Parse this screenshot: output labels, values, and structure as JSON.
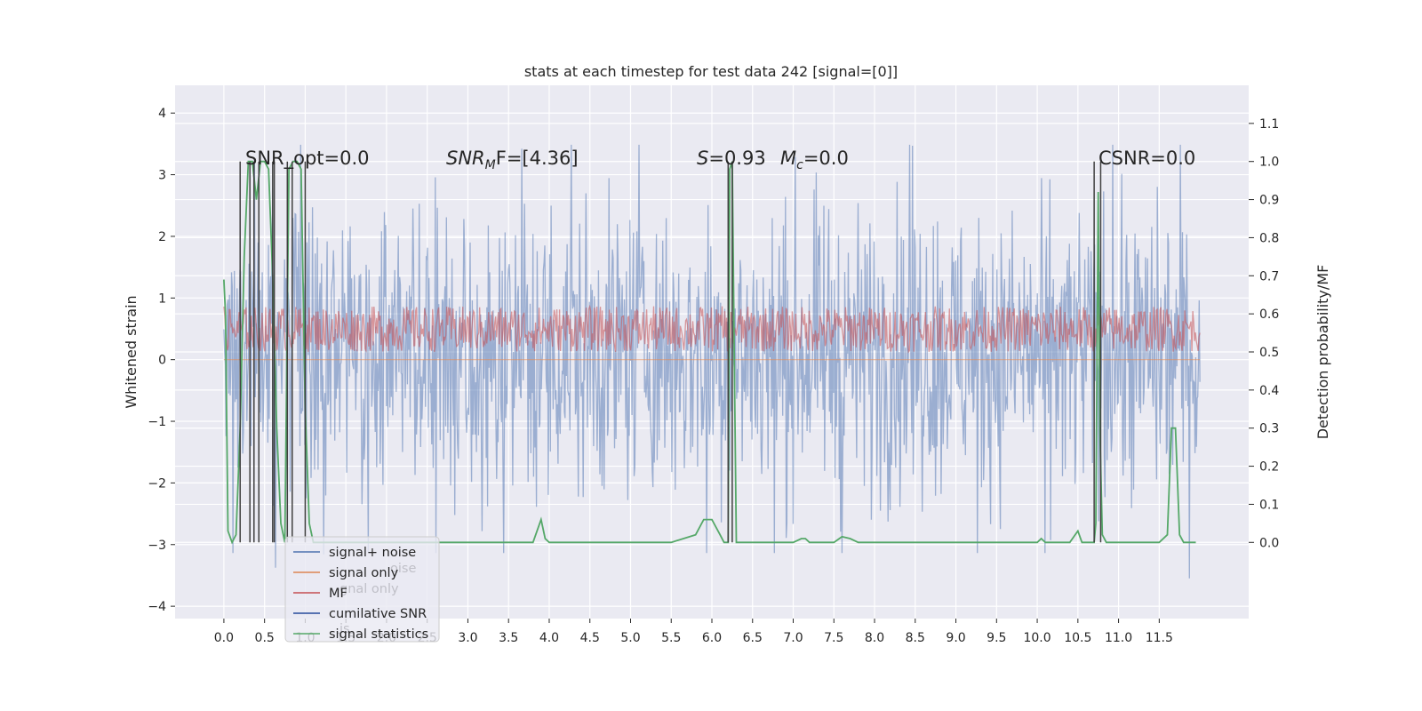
{
  "chart_data": {
    "type": "line",
    "title": "stats at each timestep for test data 242 [signal=[0]]",
    "xlabel": "",
    "ylabel": "Whitened strain",
    "y2label": "Detection probability/MF",
    "xlim": [
      -0.6,
      12.6
    ],
    "ylim": [
      -4.2,
      4.45
    ],
    "y2lim": [
      -0.2,
      1.2
    ],
    "grid": true,
    "x_ticks": [
      "0.0",
      "0.5",
      "1.0",
      "1.5",
      "2.0",
      "2.5",
      "3.0",
      "3.5",
      "4.0",
      "4.5",
      "5.0",
      "5.5",
      "6.0",
      "6.5",
      "7.0",
      "7.5",
      "8.0",
      "8.5",
      "9.0",
      "9.5",
      "10.0",
      "10.5",
      "11.0",
      "11.5"
    ],
    "y_ticks": [
      "4",
      "3",
      "2",
      "1",
      "0",
      "−1",
      "−2",
      "−3",
      "−4"
    ],
    "y2_ticks": [
      "1.1",
      "1.0",
      "0.9",
      "0.8",
      "0.7",
      "0.6",
      "0.5",
      "0.4",
      "0.3",
      "0.2",
      "0.1",
      "0.0"
    ],
    "legend": {
      "placement": "lower-left",
      "entries": [
        {
          "label": "signal+ noise",
          "color": "#4c72b0"
        },
        {
          "label": "signal only",
          "color": "#dd8452"
        },
        {
          "label": "MF",
          "color": "#c44e52"
        },
        {
          "label": "cumilative SNR",
          "color": "#264a9b"
        },
        {
          "label": "signal statistics",
          "color": "#55a868"
        }
      ],
      "ghost_labels": [
        "oise",
        "gnal only",
        "is"
      ]
    },
    "annotations": {
      "snr_opt": "SNR_opt=0.0",
      "snr_mf_base": "SNR",
      "snr_mf_sub": "M",
      "snr_mf_rest": "F=[4.36]",
      "s_label": "S",
      "s_value": "=0.93",
      "mc_base": "M",
      "mc_sub": "c",
      "mc_value": "=0.0",
      "csnr": "CSNR=0.0"
    },
    "series": [
      {
        "name": "signal+ noise",
        "axis": "left",
        "color": "#4c72b0",
        "x_range": [
          0.0,
          12.0
        ],
        "envelope": {
          "typical": [
            -1.8,
            2.0
          ],
          "max": 4.1,
          "min": -3.7
        }
      },
      {
        "name": "signal only",
        "axis": "left",
        "color": "#dd8452",
        "x_range": [
          0.0,
          12.0
        ],
        "constant": 0.0
      },
      {
        "name": "MF",
        "axis": "right",
        "color": "#c44e52",
        "x_range": [
          0.0,
          12.0
        ],
        "band": [
          0.5,
          0.62
        ]
      },
      {
        "name": "signal statistics",
        "axis": "right",
        "color": "#55a868",
        "x": [
          0.0,
          0.02,
          0.05,
          0.1,
          0.15,
          0.2,
          0.25,
          0.3,
          0.35,
          0.4,
          0.45,
          0.5,
          0.55,
          0.6,
          0.65,
          0.7,
          0.75,
          0.8,
          0.85,
          0.9,
          0.95,
          1.0,
          1.05,
          1.1,
          1.2,
          1.5,
          2.0,
          2.5,
          3.0,
          3.5,
          3.8,
          3.9,
          3.95,
          4.0,
          4.5,
          5.0,
          5.5,
          5.8,
          5.9,
          6.0,
          6.1,
          6.15,
          6.2,
          6.22,
          6.25,
          6.28,
          6.3,
          6.35,
          6.5,
          7.0,
          7.1,
          7.15,
          7.2,
          7.5,
          7.6,
          7.7,
          7.8,
          8.0,
          9.0,
          9.5,
          10.0,
          10.05,
          10.1,
          10.2,
          10.4,
          10.5,
          10.55,
          10.6,
          10.7,
          10.72,
          10.75,
          10.77,
          10.8,
          10.85,
          10.9,
          11.0,
          11.5,
          11.6,
          11.65,
          11.7,
          11.75,
          11.8,
          11.9,
          11.95
        ],
        "y": [
          0.69,
          0.6,
          0.03,
          0.0,
          0.02,
          0.3,
          0.75,
          1.0,
          1.0,
          0.9,
          1.0,
          1.0,
          0.98,
          0.7,
          0.3,
          0.05,
          0.0,
          0.98,
          1.0,
          1.0,
          0.98,
          0.35,
          0.05,
          0.0,
          0.0,
          0.0,
          0.0,
          0.0,
          0.0,
          0.0,
          0.0,
          0.06,
          0.01,
          0.0,
          0.0,
          0.0,
          0.0,
          0.02,
          0.06,
          0.06,
          0.02,
          0.0,
          0.0,
          0.98,
          1.0,
          0.4,
          0.0,
          0.0,
          0.0,
          0.0,
          0.01,
          0.01,
          0.0,
          0.0,
          0.015,
          0.01,
          0.0,
          0.0,
          0.0,
          0.0,
          0.0,
          0.01,
          0.0,
          0.0,
          0.0,
          0.03,
          0.0,
          0.0,
          0.0,
          0.05,
          0.92,
          0.3,
          0.02,
          0.0,
          0.0,
          0.0,
          0.0,
          0.02,
          0.3,
          0.3,
          0.02,
          0.0,
          0.0,
          0.0
        ]
      },
      {
        "name": "cumilative SNR",
        "axis": "right",
        "color": "#404040",
        "vlines": [
          0.2,
          0.32,
          0.37,
          0.43,
          0.6,
          0.62,
          0.78,
          0.84,
          1.0,
          6.2,
          6.25,
          10.7,
          10.78
        ],
        "vline_range": [
          0.0,
          1.0
        ]
      }
    ]
  }
}
